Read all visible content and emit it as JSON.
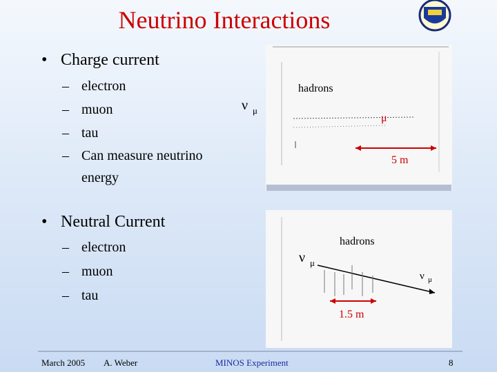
{
  "title": "Neutrino Interactions",
  "sections": [
    {
      "heading": "Charge current",
      "items": [
        "electron",
        "muon",
        "tau",
        "Can measure neutrino energy"
      ]
    },
    {
      "heading": "Neutral Current",
      "items": [
        "electron",
        "muon",
        "tau"
      ]
    }
  ],
  "figures": [
    {
      "hadrons": "hadrons",
      "nu": "ν",
      "mu": "μ",
      "muon": "μ",
      "scale": "5 m"
    },
    {
      "hadrons": "hadrons",
      "nu": "ν",
      "mu": "μ",
      "nu_out": "ν",
      "mu_out": "μ",
      "scale": "1.5 m"
    }
  ],
  "footer": {
    "date": "March 2005",
    "author": "A. Weber",
    "experiment": "MINOS Experiment",
    "page": "8"
  }
}
